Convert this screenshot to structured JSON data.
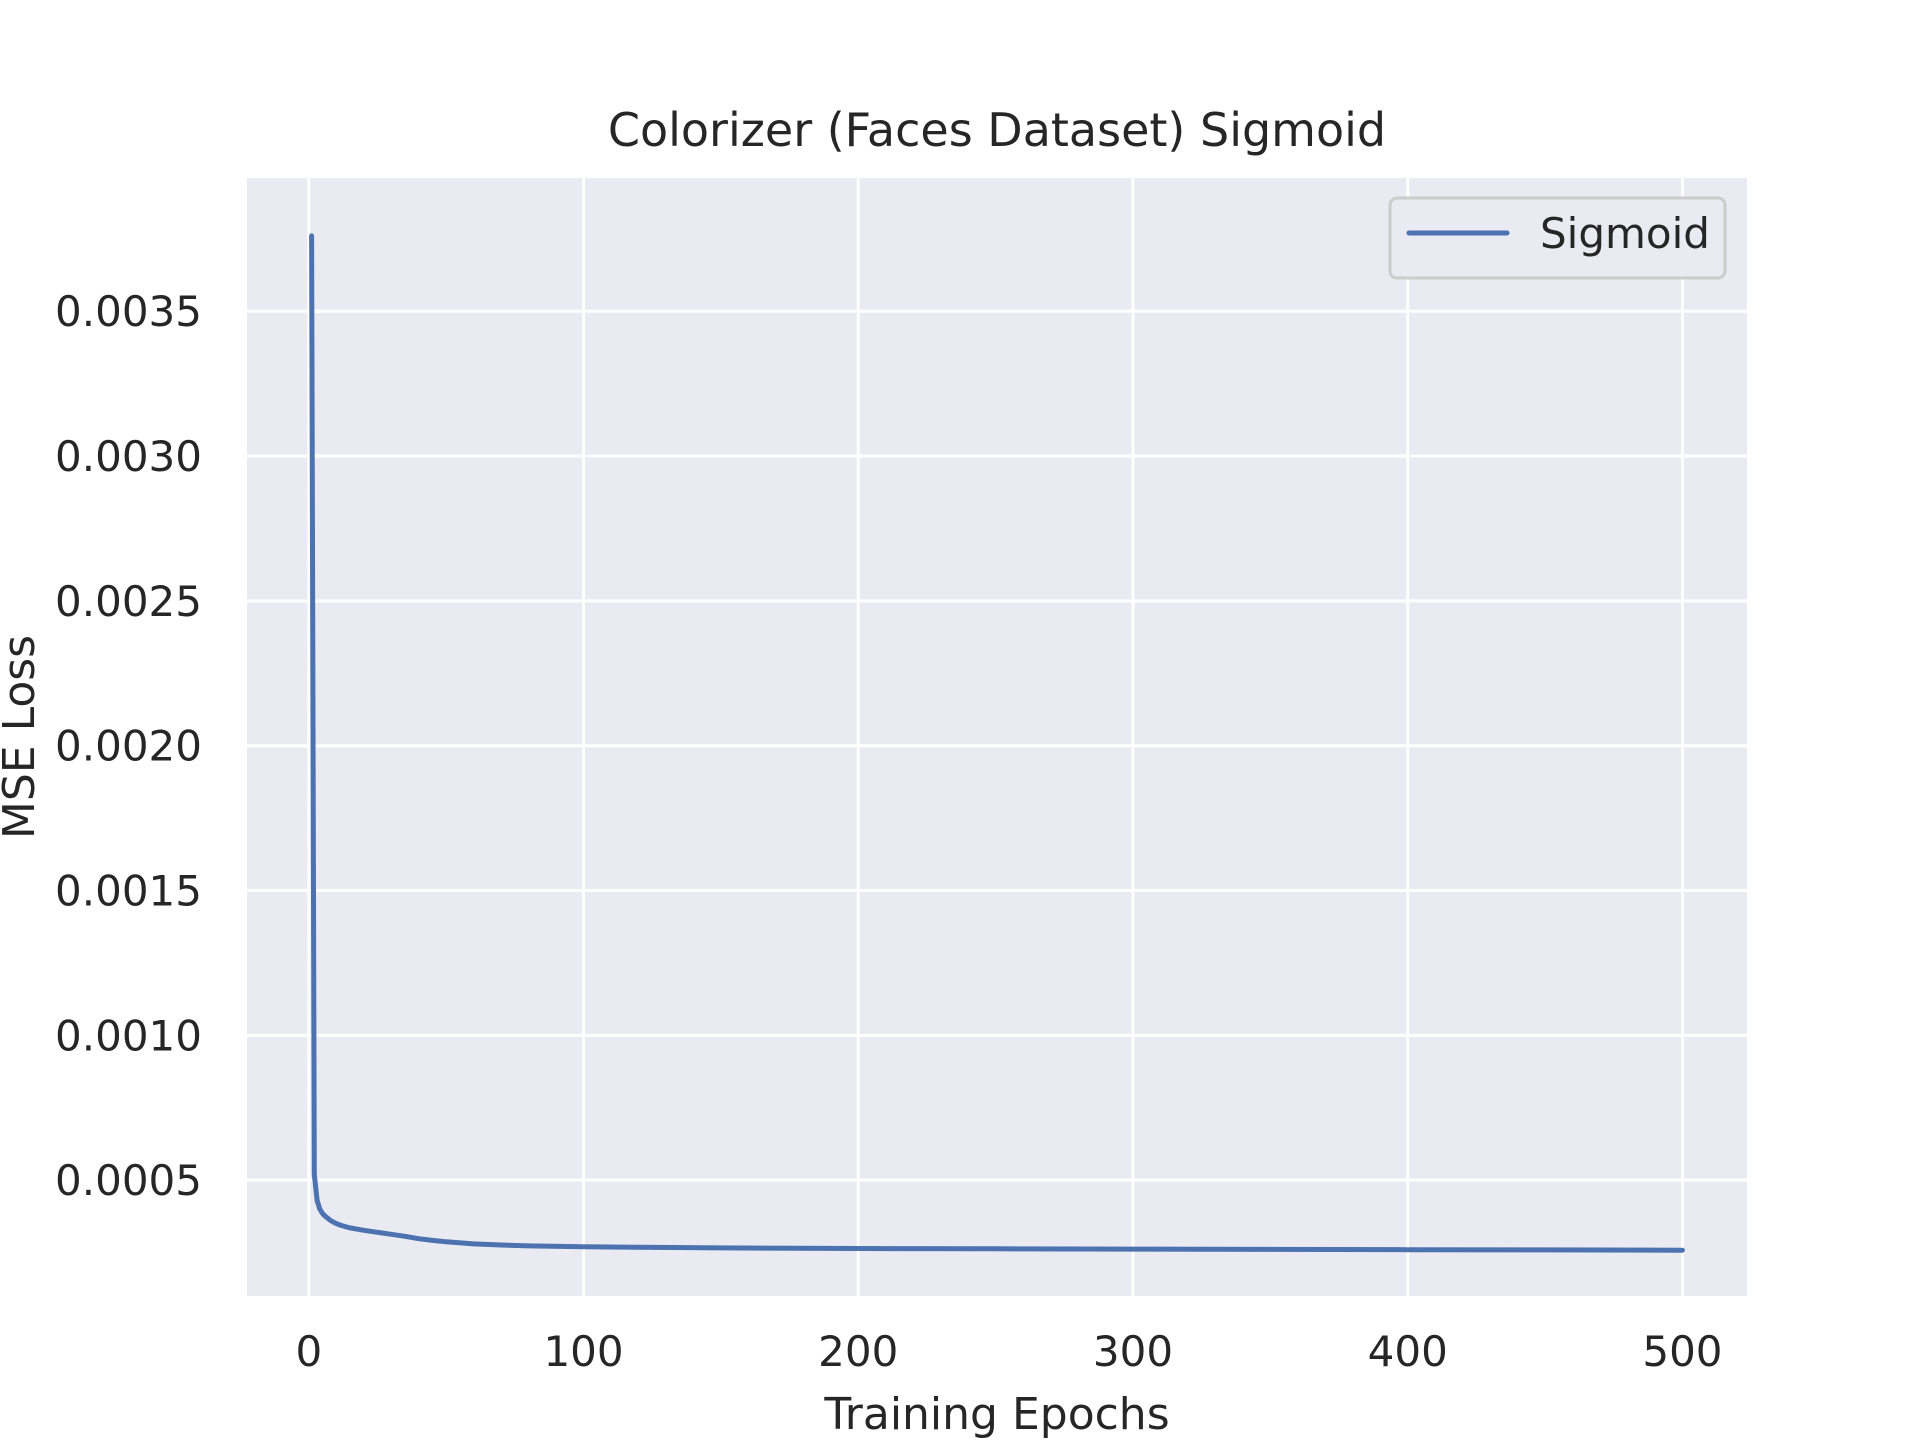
{
  "chart_data": {
    "type": "line",
    "title": "Colorizer (Faces Dataset) Sigmoid",
    "xlabel": "Training Epochs",
    "ylabel": "MSE Loss",
    "xlim": [
      -22.5,
      523.5
    ],
    "ylim": [
      0.0001,
      0.00396
    ],
    "xticks": [
      0,
      100,
      200,
      300,
      400,
      500
    ],
    "xtick_labels": [
      "0",
      "100",
      "200",
      "300",
      "400",
      "500"
    ],
    "yticks": [
      0.0005,
      0.001,
      0.0015,
      0.002,
      0.0025,
      0.003,
      0.0035
    ],
    "ytick_labels": [
      "0.0005",
      "0.0010",
      "0.0015",
      "0.0020",
      "0.0025",
      "0.0030",
      "0.0035"
    ],
    "grid": true,
    "legend_position": "top-right",
    "background": "#eaeaf2",
    "series": [
      {
        "name": "Sigmoid",
        "color": "#4c72b0",
        "x": [
          1,
          2,
          3,
          4,
          5,
          6,
          8,
          10,
          12,
          15,
          20,
          25,
          30,
          35,
          40,
          45,
          50,
          60,
          70,
          80,
          100,
          120,
          150,
          200,
          250,
          300,
          350,
          400,
          450,
          500
        ],
        "y": [
          0.00376,
          0.00052,
          0.00043,
          0.0004,
          0.000385,
          0.000375,
          0.00036,
          0.00035,
          0.000343,
          0.000335,
          0.000327,
          0.00032,
          0.000313,
          0.000306,
          0.000298,
          0.000292,
          0.000287,
          0.00028,
          0.000276,
          0.000273,
          0.00027,
          0.000268,
          0.000266,
          0.000264,
          0.000263,
          0.000262,
          0.000261,
          0.00026,
          0.000259,
          0.000258
        ]
      }
    ]
  }
}
